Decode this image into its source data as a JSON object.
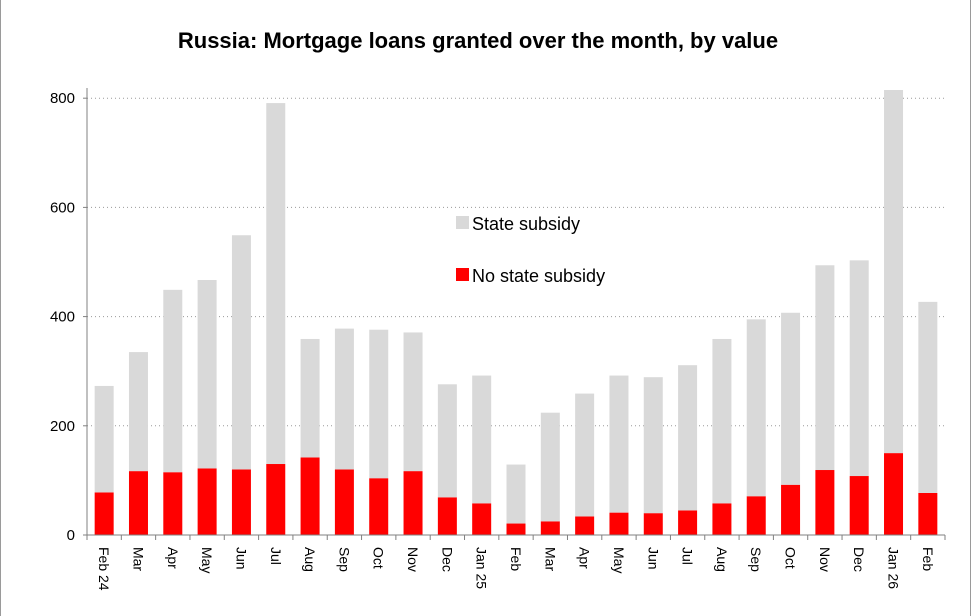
{
  "chart_data": {
    "type": "bar",
    "stacked": true,
    "title": "Russia: Mortgage loans granted over the month, by value",
    "xlabel": "",
    "ylabel": "",
    "ylim": [
      0,
      815
    ],
    "yticks": [
      0,
      200,
      400,
      600,
      800
    ],
    "grid": true,
    "legend_position": "center",
    "categories": [
      "Feb 24",
      "Mar",
      "Apr",
      "May",
      "Jun",
      "Jul",
      "Aug",
      "Sep",
      "Oct",
      "Nov",
      "Dec",
      "Jan 25",
      "Feb",
      "Mar",
      "Apr",
      "May",
      "Jun",
      "Jul",
      "Aug",
      "Sep",
      "Oct",
      "Nov",
      "Dec",
      "Jan 26",
      "Feb"
    ],
    "series": [
      {
        "name": "No state subsidy",
        "color": "#ff0000",
        "values": [
          78,
          117,
          115,
          122,
          120,
          130,
          142,
          120,
          104,
          117,
          69,
          58,
          21,
          25,
          34,
          41,
          40,
          45,
          58,
          71,
          92,
          119,
          108,
          150,
          77
        ]
      },
      {
        "name": "State subsidy",
        "color": "#d9d9d9",
        "values": [
          195,
          218,
          334,
          345,
          429,
          661,
          217,
          258,
          272,
          254,
          207,
          234,
          108,
          199,
          225,
          251,
          249,
          266,
          301,
          324,
          315,
          375,
          395,
          665,
          350
        ]
      }
    ]
  }
}
